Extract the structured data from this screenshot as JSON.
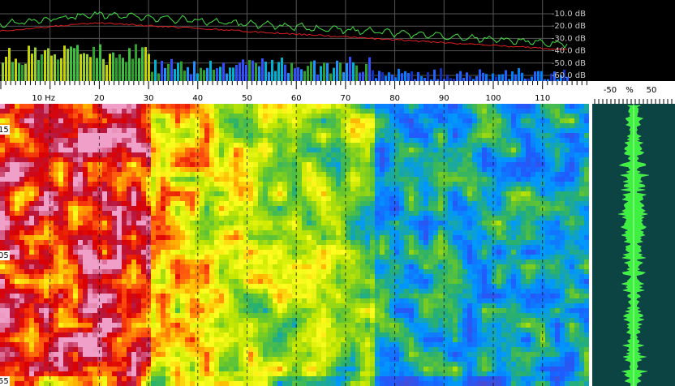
{
  "spectrum": {
    "db_labels": [
      "-10.0 dB",
      "-20.0 dB",
      "-30.0 dB",
      "-40.0 dB",
      "-50.0 dB",
      "-60.0 dB"
    ]
  },
  "frequency_ruler": {
    "labels": [
      "10 Hz",
      "20",
      "30",
      "40",
      "50",
      "60",
      "70",
      "80",
      "90",
      "100",
      "110"
    ]
  },
  "spectrogram": {
    "time_labels": [
      "15",
      "05",
      "55"
    ]
  },
  "level_meter": {
    "labels": [
      "-50",
      "%",
      "50"
    ]
  }
}
